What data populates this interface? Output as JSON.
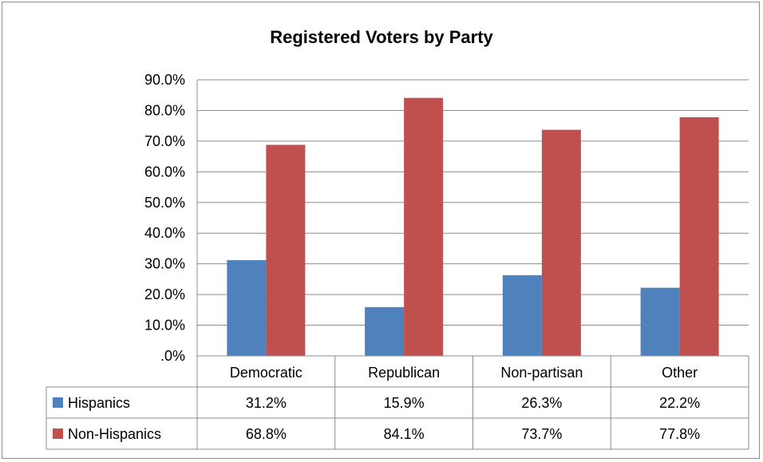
{
  "chart_data": {
    "type": "bar",
    "title": "Registered Voters by Party",
    "categories": [
      "Democratic",
      "Republican",
      "Non-partisan",
      "Other"
    ],
    "series": [
      {
        "name": "Hispanics",
        "color": "#4f81bd",
        "values": [
          31.2,
          15.9,
          26.3,
          22.2
        ],
        "labels": [
          "31.2%",
          "15.9%",
          "26.3%",
          "22.2%"
        ]
      },
      {
        "name": "Non-Hispanics",
        "color": "#c0504d",
        "values": [
          68.8,
          84.1,
          73.7,
          77.8
        ],
        "labels": [
          "68.8%",
          "84.1%",
          "73.7%",
          "77.8%"
        ]
      }
    ],
    "ylim": [
      0,
      90
    ],
    "yticks": [
      ".0%",
      "10.0%",
      "20.0%",
      "30.0%",
      "40.0%",
      "50.0%",
      "60.0%",
      "70.0%",
      "80.0%",
      "90.0%"
    ],
    "grid": true,
    "legend": "data-table-bottom"
  }
}
